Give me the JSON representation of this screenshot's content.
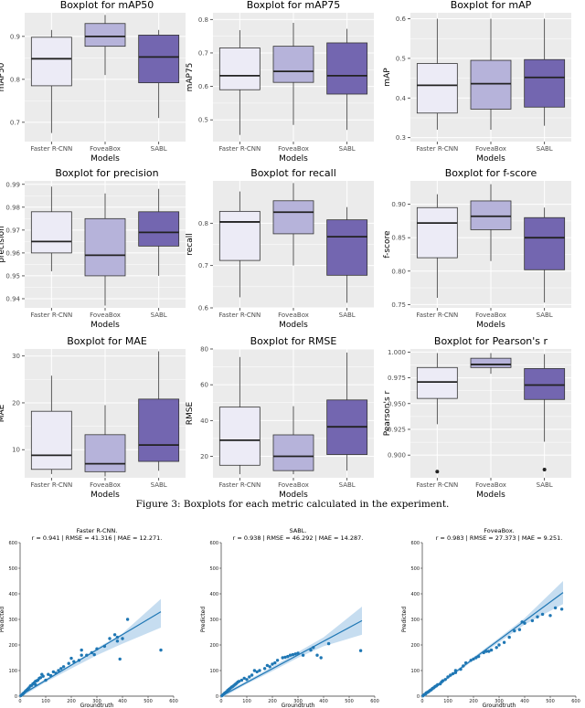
{
  "caption": "Figure 3: Boxplots for each metric calculated in the experiment.",
  "colors": {
    "box_fill": [
      "#ECEBF6",
      "#B6B3DA",
      "#7366B0"
    ],
    "panel_bg": "#EBEBEB",
    "grid": "#FFFFFF",
    "scatter_point": "#1F77B4",
    "scatter_line": "#1F77B4",
    "scatter_band": "#B8D4EC"
  },
  "chart_data": [
    {
      "type": "boxplot",
      "title": "Boxplot for mAP50",
      "xlabel": "Models",
      "ylabel": "mAP50",
      "categories": [
        "Faster R-CNN",
        "FoveaBox",
        "SABL"
      ],
      "ylim": [
        0.655,
        0.955
      ],
      "yticks": [
        0.7,
        0.8,
        0.9
      ],
      "yticklabels": [
        "0.7",
        "0.8",
        "0.9"
      ],
      "boxes": [
        {
          "min": 0.675,
          "q1": 0.785,
          "median": 0.848,
          "q3": 0.898,
          "max": 0.915
        },
        {
          "min": 0.81,
          "q1": 0.877,
          "median": 0.9,
          "q3": 0.93,
          "max": 0.95
        },
        {
          "min": 0.71,
          "q1": 0.792,
          "median": 0.852,
          "q3": 0.903,
          "max": 0.915
        }
      ],
      "outliers": [
        [],
        [],
        []
      ]
    },
    {
      "type": "boxplot",
      "title": "Boxplot for mAP75",
      "xlabel": "Models",
      "ylabel": "mAP75",
      "categories": [
        "Faster R-CNN",
        "FoveaBox",
        "SABL"
      ],
      "ylim": [
        0.435,
        0.82
      ],
      "yticks": [
        0.5,
        0.6,
        0.7,
        0.8
      ],
      "yticklabels": [
        "0.5",
        "0.6",
        "0.7",
        "0.8"
      ],
      "boxes": [
        {
          "min": 0.455,
          "q1": 0.59,
          "median": 0.632,
          "q3": 0.715,
          "max": 0.768
        },
        {
          "min": 0.485,
          "q1": 0.612,
          "median": 0.645,
          "q3": 0.72,
          "max": 0.79
        },
        {
          "min": 0.47,
          "q1": 0.577,
          "median": 0.632,
          "q3": 0.73,
          "max": 0.772
        }
      ],
      "outliers": [
        [],
        [],
        []
      ]
    },
    {
      "type": "boxplot",
      "title": "Boxplot for mAP",
      "xlabel": "Models",
      "ylabel": "mAP",
      "categories": [
        "Faster R-CNN",
        "FoveaBox",
        "SABL"
      ],
      "ylim": [
        0.29,
        0.615
      ],
      "yticks": [
        0.3,
        0.4,
        0.5,
        0.6
      ],
      "yticklabels": [
        "0.3",
        "0.4",
        "0.5",
        "0.6"
      ],
      "boxes": [
        {
          "min": 0.32,
          "q1": 0.362,
          "median": 0.432,
          "q3": 0.487,
          "max": 0.6
        },
        {
          "min": 0.32,
          "q1": 0.372,
          "median": 0.436,
          "q3": 0.495,
          "max": 0.6
        },
        {
          "min": 0.33,
          "q1": 0.377,
          "median": 0.452,
          "q3": 0.497,
          "max": 0.6
        }
      ],
      "outliers": [
        [],
        [],
        []
      ]
    },
    {
      "type": "boxplot",
      "title": "Boxplot for precision",
      "xlabel": "Models",
      "ylabel": "precision",
      "categories": [
        "Faster R-CNN",
        "FoveaBox",
        "SABL"
      ],
      "ylim": [
        0.936,
        0.9915
      ],
      "yticks": [
        0.94,
        0.95,
        0.96,
        0.97,
        0.98,
        0.99
      ],
      "yticklabels": [
        "0.94",
        "0.95",
        "0.96",
        "0.97",
        "0.98",
        "0.99"
      ],
      "boxes": [
        {
          "min": 0.952,
          "q1": 0.96,
          "median": 0.965,
          "q3": 0.978,
          "max": 0.989
        },
        {
          "min": 0.937,
          "q1": 0.95,
          "median": 0.959,
          "q3": 0.975,
          "max": 0.986
        },
        {
          "min": 0.95,
          "q1": 0.963,
          "median": 0.969,
          "q3": 0.978,
          "max": 0.988
        }
      ],
      "outliers": [
        [],
        [],
        []
      ]
    },
    {
      "type": "boxplot",
      "title": "Boxplot for recall",
      "xlabel": "Models",
      "ylabel": "recall",
      "categories": [
        "Faster R-CNN",
        "FoveaBox",
        "SABL"
      ],
      "ylim": [
        0.6,
        0.9
      ],
      "yticks": [
        0.6,
        0.7,
        0.8
      ],
      "yticklabels": [
        "0.6",
        "0.7",
        "0.8"
      ],
      "boxes": [
        {
          "min": 0.625,
          "q1": 0.712,
          "median": 0.803,
          "q3": 0.828,
          "max": 0.875
        },
        {
          "min": 0.7,
          "q1": 0.775,
          "median": 0.826,
          "q3": 0.853,
          "max": 0.895
        },
        {
          "min": 0.612,
          "q1": 0.677,
          "median": 0.768,
          "q3": 0.808,
          "max": 0.838
        }
      ],
      "outliers": [
        [],
        [],
        []
      ]
    },
    {
      "type": "boxplot",
      "title": "Boxplot for f-score",
      "xlabel": "Models",
      "ylabel": "f-score",
      "categories": [
        "Faster R-CNN",
        "FoveaBox",
        "SABL"
      ],
      "ylim": [
        0.745,
        0.935
      ],
      "yticks": [
        0.75,
        0.8,
        0.85,
        0.9
      ],
      "yticklabels": [
        "0.75",
        "0.80",
        "0.85",
        "0.90"
      ],
      "boxes": [
        {
          "min": 0.76,
          "q1": 0.82,
          "median": 0.872,
          "q3": 0.895,
          "max": 0.915
        },
        {
          "min": 0.815,
          "q1": 0.862,
          "median": 0.882,
          "q3": 0.905,
          "max": 0.93
        },
        {
          "min": 0.753,
          "q1": 0.802,
          "median": 0.85,
          "q3": 0.88,
          "max": 0.895
        }
      ],
      "outliers": [
        [],
        [],
        []
      ]
    },
    {
      "type": "boxplot",
      "title": "Boxplot for MAE",
      "xlabel": "Models",
      "ylabel": "MAE",
      "categories": [
        "Faster R-CNN",
        "FoveaBox",
        "SABL"
      ],
      "ylim": [
        4,
        31.5
      ],
      "yticks": [
        10,
        20,
        30
      ],
      "yticklabels": [
        "10",
        "20",
        "30"
      ],
      "boxes": [
        {
          "min": 4.8,
          "q1": 5.8,
          "median": 8.8,
          "q3": 18.2,
          "max": 25.8
        },
        {
          "min": 4.3,
          "q1": 5.3,
          "median": 7.0,
          "q3": 13.2,
          "max": 19.5
        },
        {
          "min": 5.5,
          "q1": 7.5,
          "median": 11.0,
          "q3": 20.8,
          "max": 31
        }
      ],
      "outliers": [
        [],
        [],
        []
      ]
    },
    {
      "type": "boxplot",
      "title": "Boxplot for RMSE",
      "xlabel": "Models",
      "ylabel": "RMSE",
      "categories": [
        "Faster R-CNN",
        "FoveaBox",
        "SABL"
      ],
      "ylim": [
        8,
        80
      ],
      "yticks": [
        20,
        40,
        60,
        80
      ],
      "yticklabels": [
        "20",
        "40",
        "60",
        "80"
      ],
      "boxes": [
        {
          "min": 10,
          "q1": 15,
          "median": 29,
          "q3": 47.5,
          "max": 75.5
        },
        {
          "min": 10,
          "q1": 12,
          "median": 20,
          "q3": 32,
          "max": 48
        },
        {
          "min": 12,
          "q1": 21,
          "median": 36.5,
          "q3": 51.5,
          "max": 78
        }
      ],
      "outliers": [
        [],
        [],
        []
      ]
    },
    {
      "type": "boxplot",
      "title": "Boxplot for Pearson's r",
      "xlabel": "Models",
      "ylabel": "Pearson's r",
      "categories": [
        "Faster R-CNN",
        "FoveaBox",
        "SABL"
      ],
      "ylim": [
        0.878,
        1.003
      ],
      "yticks": [
        0.9,
        0.925,
        0.95,
        0.975,
        1.0
      ],
      "yticklabels": [
        "0.900",
        "0.925",
        "0.950",
        "0.975",
        "1.000"
      ],
      "boxes": [
        {
          "min": 0.93,
          "q1": 0.955,
          "median": 0.971,
          "q3": 0.985,
          "max": 0.999
        },
        {
          "min": 0.979,
          "q1": 0.985,
          "median": 0.988,
          "q3": 0.994,
          "max": 0.999
        },
        {
          "min": 0.913,
          "q1": 0.954,
          "median": 0.968,
          "q3": 0.984,
          "max": 0.998
        }
      ],
      "outliers": [
        [
          0.884
        ],
        [],
        [
          0.886
        ]
      ]
    },
    {
      "type": "scatter",
      "title": "Faster R-CNN.",
      "subtitle": "r = 0.941 | RMSE = 41.316 | MAE = 12.271.",
      "xlabel": "Groundtruth",
      "ylabel": "Predicted",
      "xlim": [
        0,
        600
      ],
      "ylim": [
        0,
        600
      ],
      "xticks": [
        0,
        100,
        200,
        300,
        400,
        500,
        600
      ],
      "yticks": [
        0,
        100,
        200,
        300,
        400,
        500,
        600
      ],
      "fit": {
        "x": [
          0,
          550
        ],
        "y": [
          2,
          330
        ]
      },
      "band": {
        "x": [
          0,
          100,
          200,
          300,
          400,
          550
        ],
        "lower": [
          -6,
          55,
          108,
          160,
          205,
          268
        ],
        "upper": [
          10,
          68,
          125,
          188,
          245,
          380
        ]
      },
      "points": [
        [
          3,
          2
        ],
        [
          8,
          6
        ],
        [
          12,
          10
        ],
        [
          15,
          13
        ],
        [
          20,
          18
        ],
        [
          25,
          23
        ],
        [
          30,
          28
        ],
        [
          35,
          33
        ],
        [
          40,
          40
        ],
        [
          45,
          42
        ],
        [
          50,
          48
        ],
        [
          55,
          52
        ],
        [
          60,
          58
        ],
        [
          65,
          60
        ],
        [
          70,
          63
        ],
        [
          75,
          70
        ],
        [
          80,
          72
        ],
        [
          90,
          78
        ],
        [
          100,
          62
        ],
        [
          110,
          85
        ],
        [
          120,
          80
        ],
        [
          130,
          95
        ],
        [
          150,
          100
        ],
        [
          160,
          108
        ],
        [
          170,
          115
        ],
        [
          190,
          128
        ],
        [
          200,
          148
        ],
        [
          210,
          135
        ],
        [
          230,
          140
        ],
        [
          240,
          160
        ],
        [
          260,
          160
        ],
        [
          280,
          170
        ],
        [
          300,
          185
        ],
        [
          330,
          195
        ],
        [
          350,
          225
        ],
        [
          370,
          240
        ],
        [
          380,
          215
        ],
        [
          400,
          225
        ],
        [
          420,
          300
        ],
        [
          380,
          230
        ],
        [
          390,
          145
        ],
        [
          550,
          180
        ],
        [
          60,
          45
        ],
        [
          85,
          85
        ],
        [
          140,
          90
        ],
        [
          240,
          180
        ],
        [
          290,
          162
        ]
      ]
    },
    {
      "type": "scatter",
      "title": "SABL.",
      "subtitle": "r = 0.938 | RMSE = 46.292 | MAE = 14.287.",
      "xlabel": "Groundtruth",
      "ylabel": "Predicted",
      "xlim": [
        0,
        600
      ],
      "ylim": [
        0,
        600
      ],
      "xticks": [
        0,
        100,
        200,
        300,
        400,
        500,
        600
      ],
      "yticks": [
        0,
        100,
        200,
        300,
        400,
        500,
        600
      ],
      "fit": {
        "x": [
          0,
          550
        ],
        "y": [
          0,
          295
        ]
      },
      "band": {
        "x": [
          0,
          100,
          200,
          300,
          400,
          550
        ],
        "lower": [
          -8,
          48,
          98,
          150,
          195,
          240
        ],
        "upper": [
          8,
          60,
          115,
          172,
          230,
          350
        ]
      },
      "points": [
        [
          3,
          2
        ],
        [
          8,
          6
        ],
        [
          12,
          10
        ],
        [
          15,
          13
        ],
        [
          20,
          16
        ],
        [
          25,
          22
        ],
        [
          30,
          26
        ],
        [
          35,
          30
        ],
        [
          40,
          35
        ],
        [
          45,
          38
        ],
        [
          50,
          42
        ],
        [
          55,
          46
        ],
        [
          60,
          50
        ],
        [
          65,
          55
        ],
        [
          70,
          58
        ],
        [
          80,
          62
        ],
        [
          90,
          70
        ],
        [
          100,
          65
        ],
        [
          110,
          75
        ],
        [
          120,
          82
        ],
        [
          140,
          95
        ],
        [
          150,
          100
        ],
        [
          170,
          108
        ],
        [
          180,
          120
        ],
        [
          190,
          115
        ],
        [
          200,
          125
        ],
        [
          210,
          130
        ],
        [
          220,
          140
        ],
        [
          240,
          150
        ],
        [
          250,
          152
        ],
        [
          270,
          160
        ],
        [
          280,
          162
        ],
        [
          290,
          165
        ],
        [
          300,
          168
        ],
        [
          320,
          160
        ],
        [
          350,
          180
        ],
        [
          360,
          190
        ],
        [
          375,
          160
        ],
        [
          390,
          150
        ],
        [
          420,
          205
        ],
        [
          545,
          178
        ],
        [
          130,
          100
        ],
        [
          260,
          155
        ]
      ]
    },
    {
      "type": "scatter",
      "title": "FoveaBox.",
      "subtitle": "r = 0.983 | RMSE = 27.373 | MAE = 9.251.",
      "xlabel": "Groundtruth",
      "ylabel": "Predicted",
      "xlim": [
        0,
        600
      ],
      "ylim": [
        0,
        600
      ],
      "xticks": [
        0,
        100,
        200,
        300,
        400,
        500,
        600
      ],
      "yticks": [
        0,
        100,
        200,
        300,
        400,
        500,
        600
      ],
      "fit": {
        "x": [
          0,
          550
        ],
        "y": [
          -2,
          405
        ]
      },
      "band": {
        "x": [
          0,
          100,
          200,
          300,
          400,
          550
        ],
        "lower": [
          -10,
          66,
          140,
          210,
          280,
          360
        ],
        "upper": [
          6,
          78,
          152,
          228,
          305,
          450
        ]
      },
      "points": [
        [
          3,
          2
        ],
        [
          8,
          6
        ],
        [
          12,
          8
        ],
        [
          15,
          12
        ],
        [
          20,
          15
        ],
        [
          25,
          18
        ],
        [
          30,
          22
        ],
        [
          35,
          25
        ],
        [
          40,
          30
        ],
        [
          45,
          33
        ],
        [
          50,
          38
        ],
        [
          55,
          40
        ],
        [
          60,
          45
        ],
        [
          70,
          48
        ],
        [
          75,
          55
        ],
        [
          80,
          60
        ],
        [
          90,
          65
        ],
        [
          100,
          75
        ],
        [
          110,
          82
        ],
        [
          120,
          88
        ],
        [
          130,
          92
        ],
        [
          150,
          105
        ],
        [
          160,
          118
        ],
        [
          170,
          130
        ],
        [
          190,
          140
        ],
        [
          200,
          145
        ],
        [
          210,
          150
        ],
        [
          220,
          155
        ],
        [
          240,
          170
        ],
        [
          260,
          175
        ],
        [
          270,
          180
        ],
        [
          290,
          190
        ],
        [
          300,
          200
        ],
        [
          320,
          210
        ],
        [
          340,
          230
        ],
        [
          360,
          255
        ],
        [
          380,
          260
        ],
        [
          400,
          285
        ],
        [
          430,
          295
        ],
        [
          450,
          310
        ],
        [
          470,
          320
        ],
        [
          500,
          315
        ],
        [
          520,
          345
        ],
        [
          545,
          340
        ],
        [
          130,
          100
        ],
        [
          250,
          175
        ],
        [
          390,
          290
        ]
      ]
    }
  ]
}
